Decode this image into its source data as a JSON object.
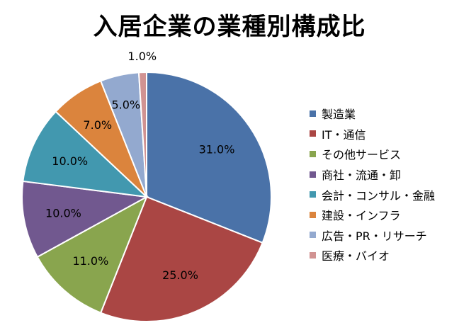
{
  "chart_data": {
    "type": "pie",
    "title": "入居企業の業種別構成比",
    "slices": [
      {
        "label": "製造業",
        "value": 31.0,
        "display": "31.0%",
        "color": "#4a72a8"
      },
      {
        "label": "IT・通信",
        "value": 25.0,
        "display": "25.0%",
        "color": "#aa4644"
      },
      {
        "label": "その他サービス",
        "value": 11.0,
        "display": "11.0%",
        "color": "#89a54e"
      },
      {
        "label": "商社・流通・卸",
        "value": 10.0,
        "display": "10.0%",
        "color": "#71588f"
      },
      {
        "label": "会計・コンサル・金融",
        "value": 10.0,
        "display": "10.0%",
        "color": "#4298af"
      },
      {
        "label": "建設・インフラ",
        "value": 7.0,
        "display": "7.0%",
        "color": "#db843d"
      },
      {
        "label": "広告・PR・リサーチ",
        "value": 5.0,
        "display": "5.0%",
        "color": "#93a9cf"
      },
      {
        "label": "医療・バイオ",
        "value": 1.0,
        "display": "1.0%",
        "color": "#d19392"
      }
    ],
    "legend_position": "right"
  }
}
